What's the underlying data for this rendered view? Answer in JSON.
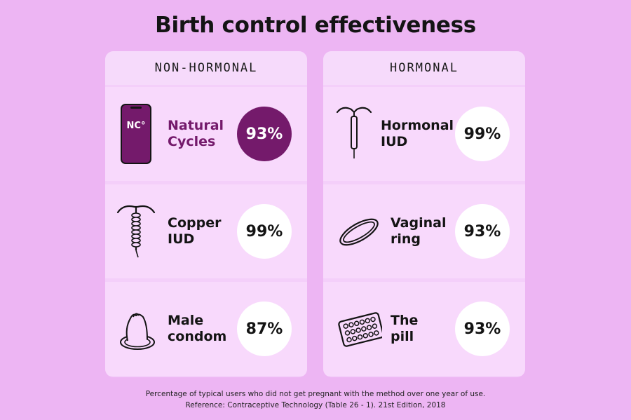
{
  "title": "Birth control effectiveness",
  "panels": [
    {
      "heading": "NON-HORMONAL",
      "items": [
        {
          "name_line1": "Natural",
          "name_line2": "Cycles",
          "percent": "93%",
          "icon": "natural-cycles-phone-icon",
          "icon_text": "NC°",
          "featured": true
        },
        {
          "name_line1": "Copper",
          "name_line2": "IUD",
          "percent": "99%",
          "icon": "copper-iud-icon"
        },
        {
          "name_line1": "Male",
          "name_line2": "condom",
          "percent": "87%",
          "icon": "condom-icon"
        }
      ]
    },
    {
      "heading": "HORMONAL",
      "items": [
        {
          "name_line1": "Hormonal",
          "name_line2": "IUD",
          "percent": "99%",
          "icon": "hormonal-iud-icon"
        },
        {
          "name_line1": "Vaginal",
          "name_line2": "ring",
          "percent": "93%",
          "icon": "vaginal-ring-icon"
        },
        {
          "name_line1": "The",
          "name_line2": "pill",
          "percent": "93%",
          "icon": "pill-pack-icon"
        }
      ]
    }
  ],
  "footer": {
    "line1": "Percentage of typical users who did not get pregnant with the method over one year of use.",
    "line2": "Reference: Contraceptive Technology (Table 26 - 1). 21st Edition, 2018"
  },
  "colors": {
    "background": "#EDB5F3",
    "panel": "#F4CFFA",
    "accent": "#741A6B",
    "circle": "#FFFFFF"
  }
}
